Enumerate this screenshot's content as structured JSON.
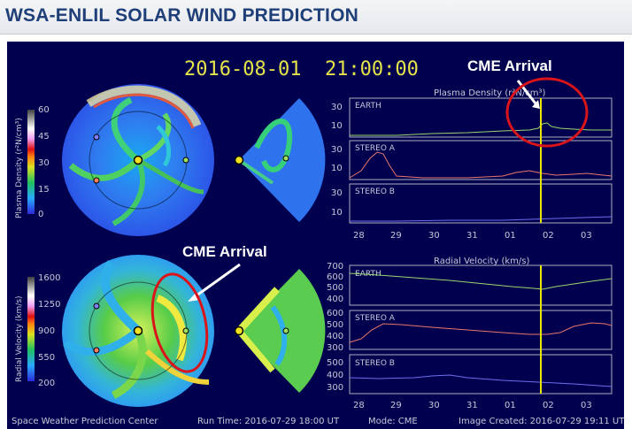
{
  "header": {
    "title": "WSA-ENLIL SOLAR WIND PREDICTION"
  },
  "datetime": "2016-08-01  21:00:00",
  "colorbars": {
    "density": {
      "label": "Plasma Density (r²N/cm³)",
      "ticks": [
        "60",
        "45",
        "30",
        "15",
        "0"
      ]
    },
    "velocity": {
      "label": "Radial Velocity (km/s)",
      "ticks": [
        "1600",
        "1250",
        "900",
        "550",
        "200"
      ]
    }
  },
  "plots": {
    "density_title": "Plasma Density (r²N/cm³)",
    "velocity_title": "Radial Velocity (km/s)",
    "density_panels": [
      {
        "label": "EARTH",
        "ticks": [
          "30",
          "10"
        ]
      },
      {
        "label": "STEREO A",
        "ticks": [
          "30",
          "10"
        ]
      },
      {
        "label": "STEREO B",
        "ticks": [
          "30",
          "10"
        ]
      }
    ],
    "velocity_panels": [
      {
        "label": "EARTH",
        "ticks": [
          "700",
          "600",
          "500",
          "400"
        ]
      },
      {
        "label": "STEREO A",
        "ticks": [
          "600",
          "500",
          "400",
          "300"
        ]
      },
      {
        "label": "STEREO B",
        "ticks": [
          "500",
          "400",
          "300"
        ]
      }
    ],
    "x_ticks": [
      "28",
      "29",
      "30",
      "31",
      "01",
      "02",
      "03"
    ],
    "current_time_marker": "02"
  },
  "annotations": {
    "cme_top": "CME Arrival",
    "cme_bottom": "CME Arrival"
  },
  "footer": {
    "center": "Space Weather Prediction Center",
    "run_time": "Run Time: 2016-07-29 18:00 UT",
    "mode": "Mode: CME",
    "image_created": "Image Created: 2016-07-29 19:11 UT"
  },
  "colors": {
    "panel_bg": "#00004f",
    "earth_line": "#9bd86a",
    "stereo_a_line": "#e8776a",
    "stereo_b_line": "#6e6ef0",
    "time_marker": "#e6e600",
    "cme_circle": "#d9141a",
    "header_text": "#1f3f78",
    "datetime_text": "#e6e34a"
  }
}
